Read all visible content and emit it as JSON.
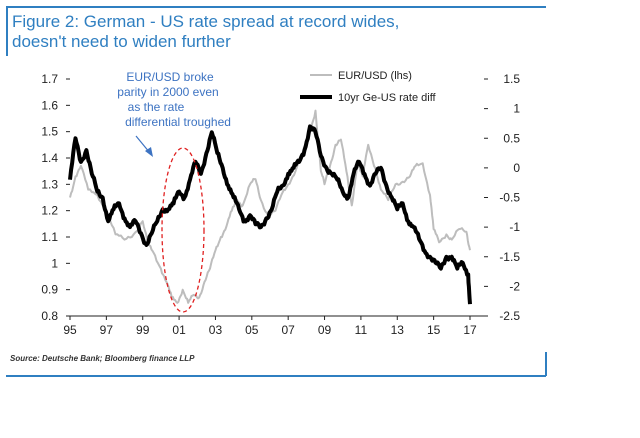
{
  "title_line1": "Figure 2: German - US rate spread at record wides,",
  "title_line2": "doesn't need to widen further",
  "source": "Source: Deutsche Bank; Bloomberg finance LLP",
  "chart_data": {
    "type": "line",
    "x_tick_labels": [
      "95",
      "97",
      "99",
      "01",
      "03",
      "05",
      "07",
      "09",
      "11",
      "13",
      "15",
      "17"
    ],
    "x_range": [
      1995,
      2017
    ],
    "y_left": {
      "ticks": [
        "0.8",
        "0.9",
        "1",
        "1.1",
        "1.2",
        "1.3",
        "1.4",
        "1.5",
        "1.6",
        "1.7"
      ],
      "range": [
        0.8,
        1.7
      ]
    },
    "y_right": {
      "ticks": [
        "-2.5",
        "-2",
        "-1.5",
        "-1",
        "-0.5",
        "0",
        "0.5",
        "1",
        "1.5"
      ],
      "range": [
        -2.5,
        1.5
      ]
    },
    "annotation": [
      "EUR/USD broke",
      "parity in 2000 even",
      "as the rate",
      "differential troughed"
    ],
    "series": [
      {
        "name": "EUR/USD (lhs)",
        "axis": "left",
        "color": "#bdbdbd",
        "x": [
          1995.0,
          1995.3,
          1995.6,
          1996.0,
          1996.5,
          1997.0,
          1997.5,
          1998.0,
          1998.5,
          1999.0,
          1999.3,
          1999.6,
          2000.0,
          2000.3,
          2000.6,
          2000.9,
          2001.2,
          2001.5,
          2001.8,
          2002.1,
          2002.4,
          2002.7,
          2003.0,
          2003.3,
          2003.6,
          2003.9,
          2004.2,
          2004.5,
          2004.9,
          2005.2,
          2005.5,
          2005.9,
          2006.3,
          2006.7,
          2007.0,
          2007.4,
          2007.8,
          2008.2,
          2008.5,
          2008.8,
          2009.0,
          2009.3,
          2009.6,
          2009.9,
          2010.2,
          2010.5,
          2010.8,
          2011.1,
          2011.4,
          2011.8,
          2012.1,
          2012.5,
          2012.9,
          2013.3,
          2013.7,
          2014.0,
          2014.4,
          2014.8,
          2015.0,
          2015.3,
          2015.7,
          2016.0,
          2016.4,
          2016.8,
          2017.0
        ],
        "y": [
          1.25,
          1.33,
          1.37,
          1.28,
          1.26,
          1.2,
          1.11,
          1.09,
          1.11,
          1.16,
          1.07,
          1.04,
          0.98,
          0.93,
          0.87,
          0.85,
          0.9,
          0.85,
          0.88,
          0.87,
          0.93,
          0.98,
          1.05,
          1.1,
          1.14,
          1.2,
          1.24,
          1.22,
          1.3,
          1.32,
          1.24,
          1.18,
          1.2,
          1.27,
          1.3,
          1.35,
          1.42,
          1.5,
          1.58,
          1.35,
          1.3,
          1.37,
          1.45,
          1.47,
          1.35,
          1.22,
          1.38,
          1.33,
          1.45,
          1.36,
          1.28,
          1.24,
          1.3,
          1.31,
          1.33,
          1.37,
          1.38,
          1.26,
          1.13,
          1.08,
          1.11,
          1.09,
          1.13,
          1.12,
          1.05
        ]
      },
      {
        "name": "10yr Ge-US rate diff",
        "axis": "right",
        "color": "#000000",
        "x": [
          1995.0,
          1995.3,
          1995.6,
          1995.9,
          1996.2,
          1996.5,
          1996.8,
          1997.1,
          1997.4,
          1997.7,
          1998.0,
          1998.3,
          1998.6,
          1998.9,
          1999.2,
          1999.5,
          1999.8,
          2000.1,
          2000.4,
          2000.7,
          2001.0,
          2001.3,
          2001.6,
          2001.9,
          2002.2,
          2002.5,
          2002.8,
          2003.1,
          2003.4,
          2003.7,
          2004.0,
          2004.3,
          2004.6,
          2004.9,
          2005.2,
          2005.5,
          2005.8,
          2006.1,
          2006.4,
          2006.7,
          2007.0,
          2007.3,
          2007.6,
          2007.9,
          2008.2,
          2008.5,
          2008.8,
          2009.1,
          2009.4,
          2009.7,
          2010.0,
          2010.3,
          2010.6,
          2010.9,
          2011.2,
          2011.5,
          2011.8,
          2012.1,
          2012.4,
          2012.7,
          2013.0,
          2013.3,
          2013.6,
          2013.9,
          2014.2,
          2014.5,
          2014.8,
          2015.1,
          2015.4,
          2015.7,
          2016.0,
          2016.3,
          2016.6,
          2016.9,
          2017.0
        ],
        "y": [
          -0.2,
          0.5,
          0.1,
          0.3,
          -0.1,
          -0.4,
          -0.5,
          -0.9,
          -0.7,
          -0.6,
          -0.85,
          -1.0,
          -0.9,
          -1.1,
          -1.3,
          -1.1,
          -0.9,
          -0.7,
          -0.7,
          -0.6,
          -0.4,
          -0.5,
          -0.2,
          0.1,
          -0.1,
          0.25,
          0.6,
          0.25,
          0.0,
          -0.3,
          -0.5,
          -0.7,
          -0.9,
          -0.8,
          -0.95,
          -1.0,
          -0.85,
          -0.7,
          -0.4,
          -0.3,
          -0.1,
          0.0,
          0.1,
          0.3,
          0.7,
          0.6,
          0.2,
          0.0,
          -0.1,
          -0.2,
          -0.4,
          -0.5,
          -0.1,
          0.1,
          -0.1,
          -0.3,
          -0.1,
          0.0,
          -0.3,
          -0.5,
          -0.7,
          -0.6,
          -0.9,
          -1.0,
          -1.2,
          -1.4,
          -1.5,
          -1.6,
          -1.7,
          -1.5,
          -1.5,
          -1.7,
          -1.6,
          -1.8,
          -2.3
        ]
      }
    ]
  }
}
